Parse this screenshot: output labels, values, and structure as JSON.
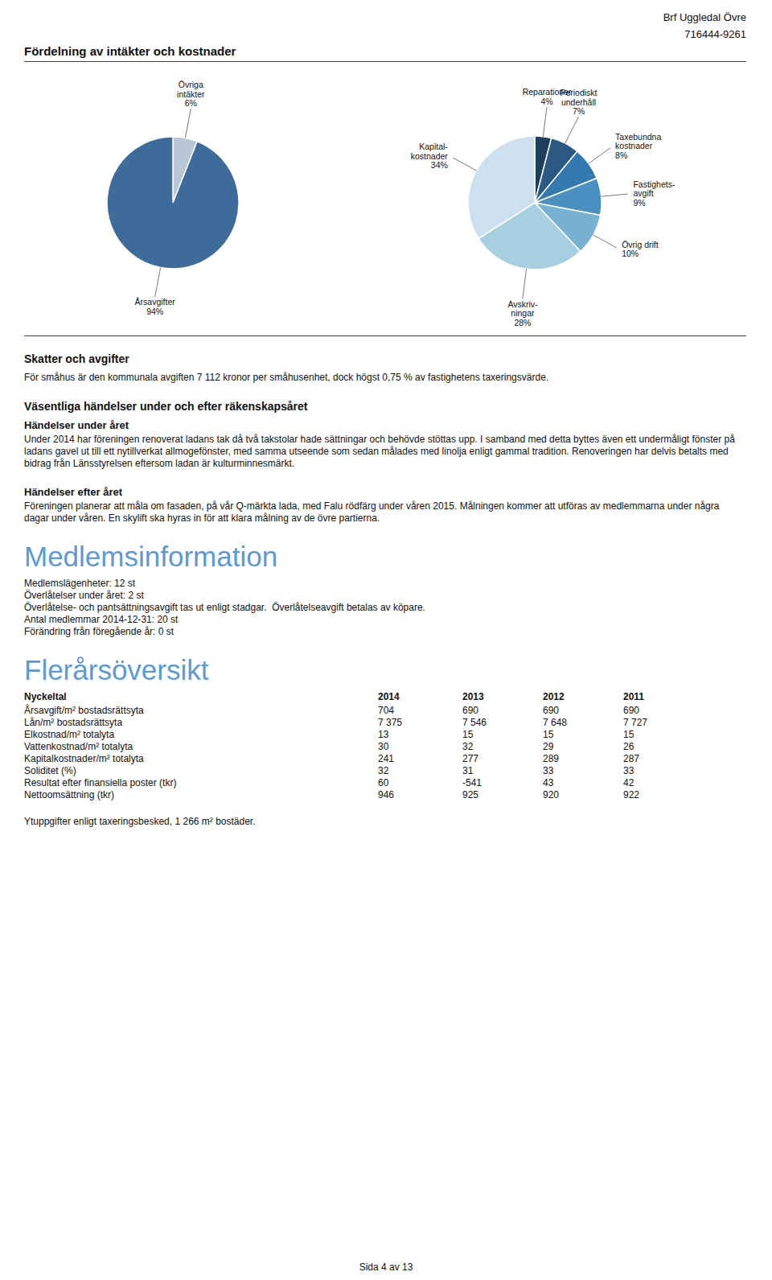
{
  "chart_data": [
    {
      "type": "text",
      "annotations": [
        "Brf Uggledal Övre",
        "716444-9261"
      ]
    },
    {
      "type": "pie",
      "title": "Fördelning av intäkter och kostnader",
      "categories": [
        "Övriga\nintäkter",
        "Årsavgifter"
      ],
      "values": [
        6,
        94
      ],
      "value_labels": [
        "6%",
        "94%"
      ],
      "colors": [
        "#b8c7d5",
        "#3d6b9a"
      ],
      "data_labels": true
    },
    {
      "type": "pie",
      "categories": [
        "Reparationer",
        "Periodiskt\nunderhåll",
        "Taxebundna\nkostnader",
        "Fastighets-\navgift",
        "Övrig drift",
        "Avskriv-\nningar",
        "Kapital-\nkostnader"
      ],
      "values": [
        4,
        7,
        8,
        9,
        10,
        28,
        34
      ],
      "value_labels": [
        "4%",
        "7%",
        "8%",
        "9%",
        "10%",
        "28%",
        "34%"
      ],
      "colors": [
        "#1e3f5c",
        "#2a5a84",
        "#3478b0",
        "#4a90c0",
        "#78b2d2",
        "#a8cfe0",
        "#cce0ef"
      ],
      "data_labels": true
    },
    {
      "type": "text",
      "title": "Skatter och avgifter",
      "annotations": [
        "För småhus är den kommunala avgiften 7 112 kronor per småhusenhet, dock högst 0,75 % av fastighetens taxeringsvärde."
      ]
    },
    {
      "type": "text",
      "title": "Väsentliga händelser under och efter räkenskapsåret",
      "subtitle": "Händelser under året",
      "annotations": [
        "Under 2014 har föreningen renoverat ladans tak då två takstolar hade sättningar och behövde stöttas upp. I samband med detta byttes även ett undermåligt fönster på ladans gavel ut till ett nytillverkat allmogefönster, med samma utseende som sedan målades med linolja enligt gammal tradition. Renoveringen har delvis betalts med bidrag från Länsstyrelsen eftersom ladan är kulturminnesmärkt."
      ]
    },
    {
      "type": "text",
      "subtitle": "Händelser efter året",
      "annotations": [
        "Föreningen planerar att måla om fasaden, på vår Q-märkta lada, med Falu rödfärg under våren 2015. Målningen kommer att utföras av medlemmarna under några dagar under våren. En skylift ska hyras in för att klara målning av de övre partierna."
      ]
    },
    {
      "type": "text",
      "title": "Medlemsinformation",
      "color": "#5b9bd5",
      "annotations": [
        "Medlemslägenheter: 12 st",
        "Överlåtelser under året: 2 st",
        "Överlåtelse- och pantsättningsavgift tas ut enligt stadgar.  Överlåtelseavgift betalas av köpare.",
        "Antal medlemmar 2014-12-31: 20 st",
        "Förändring från föregående år: 0 st"
      ]
    },
    {
      "type": "table",
      "title": "Flerårsöversikt",
      "color": "#5b9bd5",
      "xlabel": "Nyckeltal",
      "categories": [
        "Årsavgift/m² bostadsrättsyta",
        "Lån/m² bostadsrättsyta",
        "Elkostnad/m² totalyta",
        "Vattenkostnad/m² totalyta",
        "Kapitalkostnader/m² totalyta",
        "Soliditet (%)",
        "Resultat efter finansiella poster (tkr)",
        "Nettoomsättning (tkr)"
      ],
      "series": [
        {
          "name": "2014",
          "values": [
            704,
            7375,
            13,
            30,
            241,
            32,
            60,
            946
          ],
          "value_labels": [
            "704",
            "7 375",
            "13",
            "30",
            "241",
            "32",
            "60",
            "946"
          ]
        },
        {
          "name": "2013",
          "values": [
            690,
            7546,
            15,
            32,
            277,
            31,
            -541,
            925
          ],
          "value_labels": [
            "690",
            "7 546",
            "15",
            "32",
            "277",
            "31",
            "-541",
            "925"
          ]
        },
        {
          "name": "2012",
          "values": [
            690,
            7648,
            15,
            29,
            289,
            33,
            43,
            920
          ],
          "value_labels": [
            "690",
            "7 648",
            "15",
            "29",
            "289",
            "33",
            "43",
            "920"
          ]
        },
        {
          "name": "2011",
          "values": [
            690,
            7727,
            15,
            26,
            287,
            33,
            42,
            922
          ],
          "value_labels": [
            "690",
            "7 727",
            "15",
            "26",
            "287",
            "33",
            "42",
            "922"
          ]
        }
      ],
      "data_labels": true,
      "annotations": [
        "Ytuppgifter enligt taxeringsbesked, 1 266 m² bostäder."
      ]
    },
    {
      "type": "text",
      "annotations": [
        "Sida 4 av 13"
      ]
    }
  ]
}
